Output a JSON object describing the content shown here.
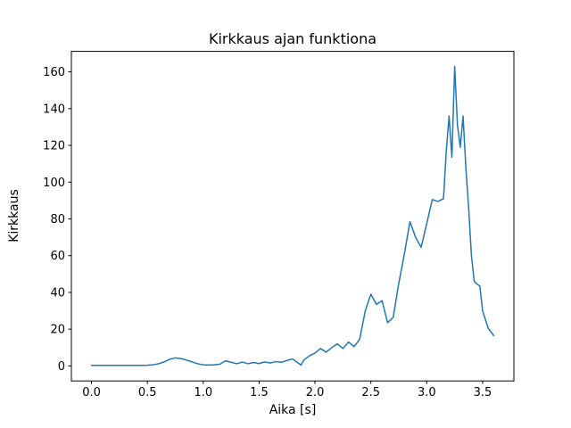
{
  "chart_data": {
    "type": "line",
    "title": "Kirkkaus ajan funktiona",
    "xlabel": "Aika [s]",
    "ylabel": "Kirkkaus",
    "line_color": "#1f77b4",
    "background_color": "#ffffff",
    "grid": false,
    "legend": null,
    "xlim": [
      -0.18,
      3.78
    ],
    "ylim": [
      -8.15,
      171.15
    ],
    "xticks": [
      0.0,
      0.5,
      1.0,
      1.5,
      2.0,
      2.5,
      3.0,
      3.5
    ],
    "xtick_labels": [
      "0.0",
      "0.5",
      "1.0",
      "1.5",
      "2.0",
      "2.5",
      "3.0",
      "3.5"
    ],
    "yticks": [
      0,
      20,
      40,
      60,
      80,
      100,
      120,
      140,
      160
    ],
    "ytick_labels": [
      "0",
      "20",
      "40",
      "60",
      "80",
      "100",
      "120",
      "140",
      "160"
    ],
    "x": [
      0.0,
      0.05,
      0.1,
      0.15,
      0.2,
      0.25,
      0.3,
      0.35,
      0.4,
      0.45,
      0.5,
      0.55,
      0.6,
      0.65,
      0.7,
      0.75,
      0.8,
      0.85,
      0.9,
      0.95,
      1.0,
      1.05,
      1.1,
      1.15,
      1.2,
      1.25,
      1.3,
      1.35,
      1.4,
      1.45,
      1.5,
      1.55,
      1.6,
      1.65,
      1.7,
      1.75,
      1.8,
      1.85,
      1.875,
      1.9,
      1.95,
      2.0,
      2.05,
      2.1,
      2.15,
      2.2,
      2.25,
      2.3,
      2.35,
      2.4,
      2.45,
      2.5,
      2.55,
      2.6,
      2.65,
      2.7,
      2.75,
      2.8,
      2.85,
      2.9,
      2.95,
      3.0,
      3.05,
      3.1,
      3.15,
      3.175,
      3.2,
      3.225,
      3.25,
      3.275,
      3.3,
      3.325,
      3.35,
      3.375,
      3.4,
      3.425,
      3.45,
      3.475,
      3.5,
      3.55,
      3.6
    ],
    "y": [
      0.3,
      0.3,
      0.3,
      0.3,
      0.3,
      0.3,
      0.3,
      0.3,
      0.3,
      0.3,
      0.4,
      0.6,
      1.2,
      2.2,
      3.6,
      4.4,
      4.0,
      3.2,
      2.2,
      1.2,
      0.6,
      0.5,
      0.6,
      1.0,
      2.8,
      2.0,
      1.2,
      2.1,
      1.2,
      1.9,
      1.3,
      2.2,
      1.6,
      2.4,
      2.0,
      3.0,
      3.8,
      1.6,
      0.5,
      3.2,
      5.5,
      7.0,
      9.5,
      7.5,
      10.0,
      12.0,
      9.5,
      13.0,
      10.5,
      14.5,
      30.0,
      39.0,
      33.5,
      35.5,
      23.5,
      26.5,
      45.0,
      61.0,
      78.5,
      70.0,
      64.5,
      77.5,
      90.5,
      89.5,
      91.0,
      117.0,
      136.0,
      113.5,
      163.0,
      131.0,
      119.0,
      136.0,
      108.0,
      86.0,
      60.0,
      46.0,
      44.5,
      43.5,
      30.0,
      20.5,
      16.5
    ]
  }
}
